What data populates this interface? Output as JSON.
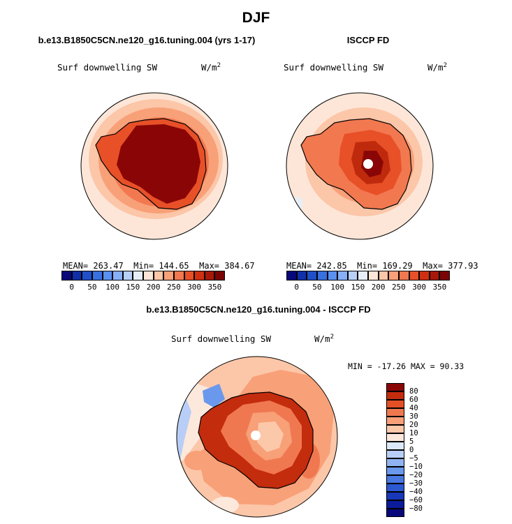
{
  "title": "DJF",
  "panels": [
    {
      "id": "model",
      "title": "b.e13.B1850C5CN.ne120_g16.tuning.004 (yrs 1-17)",
      "variable": "Surf downwelling SW",
      "units": "W/m",
      "units_exp": "2",
      "stats": {
        "mean_label": "MEAN=",
        "mean": "263.47",
        "min_label": "Min=",
        "min": "144.65",
        "max_label": "Max=",
        "max": "384.67"
      }
    },
    {
      "id": "obs",
      "title": "ISCCP FD",
      "variable": "Surf downwelling SW",
      "units": "W/m",
      "units_exp": "2",
      "stats": {
        "mean_label": "MEAN=",
        "mean": "242.85",
        "min_label": "Min=",
        "min": "169.29",
        "max_label": "Max=",
        "max": "377.93"
      }
    },
    {
      "id": "diff",
      "title": "b.e13.B1850C5CN.ne120_g16.tuning.004 - ISCCP FD",
      "variable": "Surf downwelling SW",
      "units": "W/m",
      "units_exp": "2",
      "minmax_text": "MIN = -17.26 MAX =  90.33"
    }
  ],
  "colorbar_abs": {
    "colors": [
      "#08087a",
      "#1030a8",
      "#2050c8",
      "#3870e0",
      "#5a90f0",
      "#88b0f8",
      "#b8d0f8",
      "#e6eef8",
      "#fde6d8",
      "#fcc6a8",
      "#f8a078",
      "#f27850",
      "#e85028",
      "#d03010",
      "#a81808",
      "#7a0404"
    ],
    "labels": [
      "0",
      "50",
      "100",
      "150",
      "200",
      "250",
      "300",
      "350"
    ]
  },
  "colorbar_diff": {
    "colors": [
      "#08087a",
      "#0a1c9a",
      "#1838b8",
      "#2c58d0",
      "#4878e0",
      "#6a98ec",
      "#90b4f2",
      "#b8cef6",
      "#dce8f8",
      "#fde8dc",
      "#fcc8aa",
      "#f8a07a",
      "#f07850",
      "#e45026",
      "#c42c0e",
      "#8a0606"
    ],
    "labels": [
      "80",
      "60",
      "40",
      "30",
      "20",
      "10",
      "5",
      "0",
      "−5",
      "−10",
      "−20",
      "−30",
      "−40",
      "−60",
      "−80"
    ]
  }
}
